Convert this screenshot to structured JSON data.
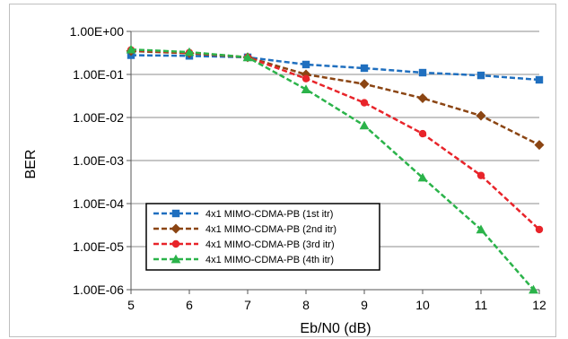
{
  "chart_data": {
    "type": "line",
    "xlabel": "Eb/N0 (dB)",
    "ylabel": "BER",
    "x_scale": "linear",
    "y_scale": "log",
    "xlim": [
      5,
      12
    ],
    "ylim": [
      1e-06,
      1
    ],
    "x_ticks": [
      "5",
      "6",
      "7",
      "8",
      "9",
      "10",
      "11",
      "12"
    ],
    "y_ticks": [
      "1.00E+00",
      "1.00E-01",
      "1.00E-02",
      "1.00E-03",
      "1.00E-04",
      "1.00E-05",
      "1.00E-06"
    ],
    "grid": "horizontal",
    "legend_position": "bottom-left",
    "line_style": "dashed",
    "series": [
      {
        "name": "4x1 MIMO-CDMA-PB (1st itr)",
        "color": "#1f6fbf",
        "marker": "square",
        "x": [
          5,
          6,
          7,
          8,
          9,
          10,
          11,
          12
        ],
        "y": [
          0.28,
          0.27,
          0.25,
          0.17,
          0.14,
          0.11,
          0.095,
          0.075
        ]
      },
      {
        "name": "4x1 MIMO-CDMA-PB (2nd itr)",
        "color": "#8b4513",
        "marker": "diamond",
        "x": [
          5,
          6,
          7,
          8,
          9,
          10,
          11,
          12
        ],
        "y": [
          0.35,
          0.31,
          0.25,
          0.1,
          0.06,
          0.028,
          0.011,
          0.0023
        ]
      },
      {
        "name": "4x1 MIMO-CDMA-PB (3rd itr)",
        "color": "#e8242a",
        "marker": "circle",
        "x": [
          5,
          6,
          7,
          8,
          9,
          10,
          11,
          12
        ],
        "y": [
          0.37,
          0.32,
          0.25,
          0.08,
          0.022,
          0.0042,
          0.00045,
          2.5e-05
        ]
      },
      {
        "name": "4x1 MIMO-CDMA-PB (4th itr)",
        "color": "#2bb34a",
        "marker": "triangle",
        "x": [
          5,
          6,
          7,
          8,
          9,
          10,
          11,
          11.9
        ],
        "y": [
          0.38,
          0.33,
          0.25,
          0.045,
          0.0065,
          0.0004,
          2.5e-05,
          1e-06
        ]
      }
    ]
  }
}
